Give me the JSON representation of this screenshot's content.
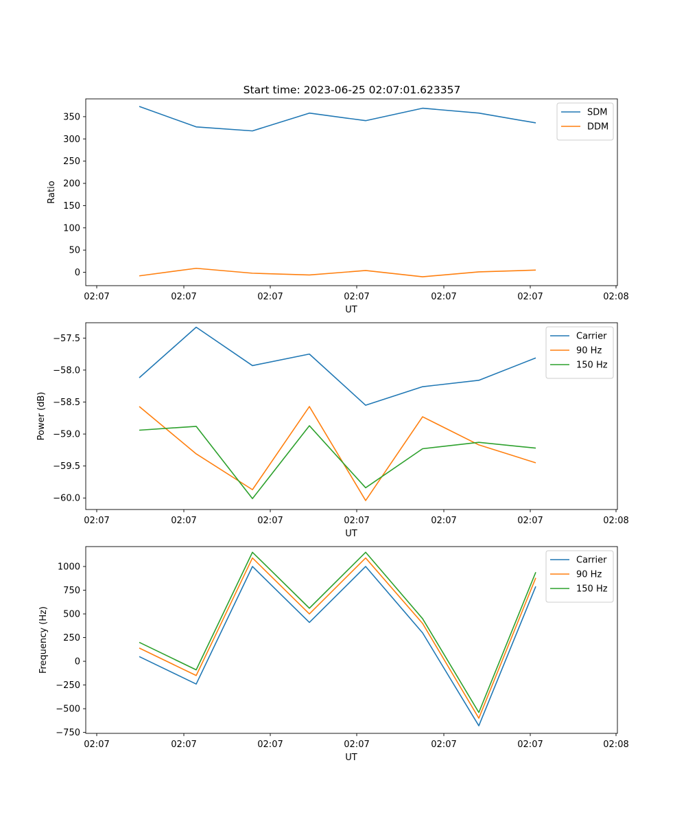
{
  "title": "Start time: 2023-06-25 02:07:01.623357",
  "chart_data": [
    {
      "type": "line",
      "title": "Start time: 2023-06-25 02:07:01.623357",
      "xlabel": "UT",
      "ylabel": "Ratio",
      "x_tick_labels": [
        "02:07",
        "02:07",
        "02:07",
        "02:07",
        "02:07",
        "02:07",
        "02:08"
      ],
      "y_ticks": [
        0,
        50,
        100,
        150,
        200,
        250,
        300,
        350
      ],
      "ylim": [
        -30,
        390
      ],
      "legend_position": "top-right",
      "series": [
        {
          "name": "SDM",
          "color": "#1f77b4",
          "values": [
            373,
            327,
            318,
            358,
            341,
            369,
            358,
            336
          ]
        },
        {
          "name": "DDM",
          "color": "#ff7f0e",
          "values": [
            -8,
            9,
            -2,
            -6,
            4,
            -10,
            1,
            5
          ]
        }
      ]
    },
    {
      "type": "line",
      "title": "",
      "xlabel": "UT",
      "ylabel": "Power (dB)",
      "x_tick_labels": [
        "02:07",
        "02:07",
        "02:07",
        "02:07",
        "02:07",
        "02:07",
        "02:08"
      ],
      "y_ticks": [
        -60.0,
        -59.5,
        -59.0,
        -58.5,
        -58.0,
        -57.5
      ],
      "y_tick_labels": [
        "−60.0",
        "−59.5",
        "−59.0",
        "−58.5",
        "−58.0",
        "−57.5"
      ],
      "ylim": [
        -60.18,
        -57.26
      ],
      "legend_position": "top-right",
      "series": [
        {
          "name": "Carrier",
          "color": "#1f77b4",
          "values": [
            -58.12,
            -57.33,
            -57.93,
            -57.75,
            -58.55,
            -58.26,
            -58.16,
            -57.81
          ]
        },
        {
          "name": "90 Hz",
          "color": "#ff7f0e",
          "values": [
            -58.57,
            -59.31,
            -59.87,
            -58.57,
            -60.04,
            -58.73,
            -59.17,
            -59.45
          ]
        },
        {
          "name": "150 Hz",
          "color": "#2ca02c",
          "values": [
            -58.94,
            -58.88,
            -60.01,
            -58.87,
            -59.84,
            -59.23,
            -59.13,
            -59.22
          ]
        }
      ]
    },
    {
      "type": "line",
      "title": "",
      "xlabel": "UT",
      "ylabel": "Frequency (Hz)",
      "x_tick_labels": [
        "02:07",
        "02:07",
        "02:07",
        "02:07",
        "02:07",
        "02:07",
        "02:08"
      ],
      "y_ticks": [
        -750,
        -500,
        -250,
        0,
        250,
        500,
        750,
        1000
      ],
      "y_tick_labels": [
        "−750",
        "−500",
        "−250",
        "0",
        "250",
        "500",
        "750",
        "1000"
      ],
      "ylim": [
        -760,
        1210
      ],
      "legend_position": "top-right",
      "series": [
        {
          "name": "Carrier",
          "color": "#1f77b4",
          "values": [
            50,
            -240,
            1000,
            410,
            1000,
            300,
            -680,
            790
          ]
        },
        {
          "name": "90 Hz",
          "color": "#ff7f0e",
          "values": [
            140,
            -150,
            1090,
            500,
            1090,
            400,
            -600,
            880
          ]
        },
        {
          "name": "150 Hz",
          "color": "#2ca02c",
          "values": [
            200,
            -90,
            1150,
            560,
            1150,
            450,
            -540,
            940
          ]
        }
      ]
    }
  ]
}
